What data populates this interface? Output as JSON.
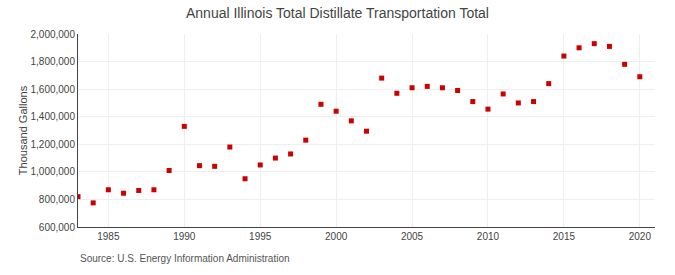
{
  "chart_data": {
    "type": "scatter",
    "title": "Annual Illinois Total Distillate Transportation Total",
    "ylabel": "Thousand Gallons",
    "annotations": [
      "Source: U.S. Energy Information Administration"
    ],
    "x": [
      1983,
      1984,
      1985,
      1986,
      1987,
      1988,
      1989,
      1990,
      1991,
      1992,
      1993,
      1994,
      1995,
      1996,
      1997,
      1998,
      1999,
      2000,
      2001,
      2002,
      2003,
      2004,
      2005,
      2006,
      2007,
      2008,
      2009,
      2010,
      2011,
      2012,
      2013,
      2014,
      2015,
      2016,
      2017,
      2018,
      2019,
      2020
    ],
    "values": [
      820000,
      775000,
      870000,
      845000,
      865000,
      870000,
      1010000,
      1330000,
      1045000,
      1040000,
      1180000,
      950000,
      1050000,
      1100000,
      1130000,
      1230000,
      1490000,
      1440000,
      1370000,
      1295000,
      1680000,
      1570000,
      1610000,
      1620000,
      1610000,
      1590000,
      1510000,
      1455000,
      1565000,
      1500000,
      1510000,
      1640000,
      1840000,
      1900000,
      1930000,
      1910000,
      1780000,
      1690000
    ],
    "color": "#cc0000",
    "marker": "square",
    "xlim": [
      1983,
      2021
    ],
    "xticks": [
      1985,
      1990,
      1995,
      2000,
      2005,
      2010,
      2015,
      2020
    ],
    "ylim": [
      600000,
      2000000
    ],
    "yticks": [
      {
        "value": 600000,
        "label": "600,000"
      },
      {
        "value": 800000,
        "label": "800,000"
      },
      {
        "value": 1000000,
        "label": "1,000,000"
      },
      {
        "value": 1200000,
        "label": "1,200,000"
      },
      {
        "value": 1400000,
        "label": "1,400,000"
      },
      {
        "value": 1600000,
        "label": "1,600,000"
      },
      {
        "value": 1800000,
        "label": "1,800,000"
      },
      {
        "value": 2000000,
        "label": "2,000,000"
      }
    ],
    "grid": true
  }
}
